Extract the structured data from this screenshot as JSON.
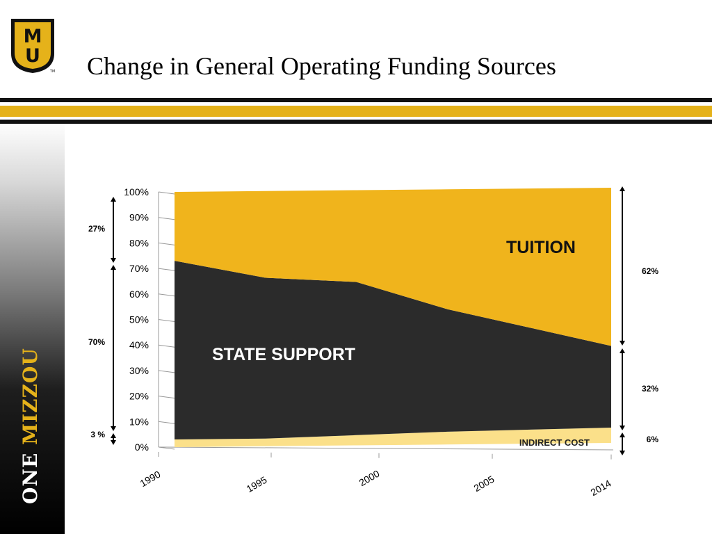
{
  "slide": {
    "title": "Change in General Operating Funding Sources",
    "tagline_one": "ONE",
    "tagline_mizzou": "MIZZOU",
    "logo_letters": "MU",
    "logo_tm": "TM"
  },
  "colors": {
    "gold": "#e5b21a",
    "tuition": "#f0b41c",
    "state_support": "#2b2b2b",
    "indirect_cost": "#fbe08a"
  },
  "chart_data": {
    "type": "area",
    "stacked": true,
    "x": [
      1990,
      1995,
      2000,
      2005,
      2014
    ],
    "xtick_labels": [
      "1990",
      "1995",
      "2000",
      "2005",
      "2014"
    ],
    "ylim": [
      0,
      100
    ],
    "ytick_labels": [
      "0%",
      "10%",
      "20%",
      "30%",
      "40%",
      "50%",
      "60%",
      "70%",
      "80%",
      "90%",
      "100%"
    ],
    "series": [
      {
        "name": "INDIRECT COST",
        "values": [
          3,
          3,
          4,
          5,
          6
        ]
      },
      {
        "name": "STATE SUPPORT",
        "values": [
          70,
          63,
          60,
          48,
          32
        ]
      },
      {
        "name": "TUITION",
        "values": [
          27,
          34,
          36,
          47,
          62
        ]
      }
    ],
    "annotations": {
      "left": [
        "27%",
        "70%",
        "3 %"
      ],
      "right": [
        "62%",
        "32%",
        "6%"
      ]
    }
  }
}
